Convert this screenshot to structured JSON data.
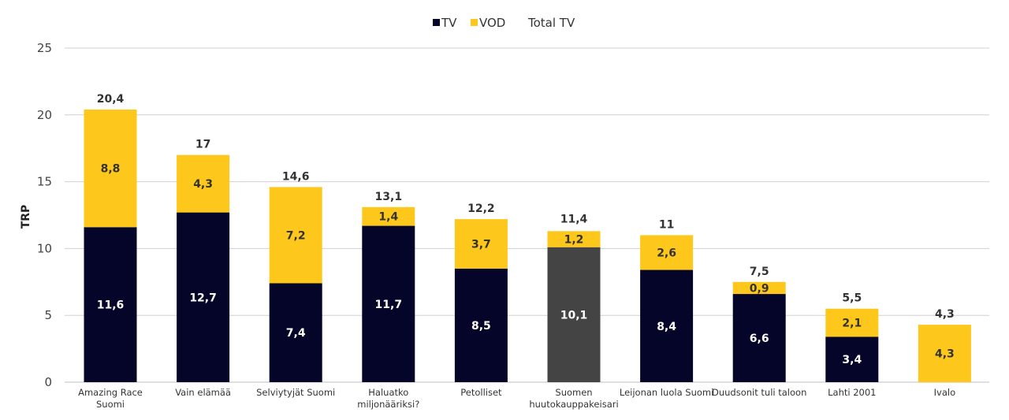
{
  "chart_data": {
    "type": "bar",
    "stacked": true,
    "title": "",
    "xlabel": "",
    "ylabel": "TRP",
    "ylim": [
      0,
      25
    ],
    "yticks": [
      0,
      5,
      10,
      15,
      20,
      25
    ],
    "grid": true,
    "legend_position": "top-center",
    "legend": [
      {
        "name": "TV",
        "color": "#05052a"
      },
      {
        "name": "VOD",
        "color": "#fdc71c"
      },
      {
        "name": "Total TV",
        "color": null
      }
    ],
    "categories": [
      [
        "Amazing Race",
        "Suomi"
      ],
      [
        "Vain elämää"
      ],
      [
        "Selviytyjät Suomi"
      ],
      [
        "Haluatko",
        "miljonääriksi?"
      ],
      [
        "Petolliset"
      ],
      [
        "Suomen",
        "huutokauppakeisari"
      ],
      [
        "Leijonan luola Suomi"
      ],
      [
        "Duudsonit tuli taloon"
      ],
      [
        "Lahti 2001"
      ],
      [
        "Ivalo"
      ]
    ],
    "series": [
      {
        "name": "TV",
        "color": "#05052a",
        "label_color": "#ffffff",
        "values": [
          11.6,
          12.7,
          7.4,
          11.7,
          8.5,
          10.1,
          8.4,
          6.6,
          3.4,
          0
        ],
        "labels": [
          "11,6",
          "12,7",
          "7,4",
          "11,7",
          "8,5",
          "10,1",
          "8,4",
          "6,6",
          "3,4",
          ""
        ],
        "point_colors": [
          null,
          null,
          null,
          null,
          null,
          "#444444",
          null,
          null,
          null,
          null
        ]
      },
      {
        "name": "VOD",
        "color": "#fdc71c",
        "label_color": "#333333",
        "values": [
          8.8,
          4.3,
          7.2,
          1.4,
          3.7,
          1.2,
          2.6,
          0.9,
          2.1,
          4.3
        ],
        "labels": [
          "8,8",
          "4,3",
          "7,2",
          "1,4",
          "3,7",
          "1,2",
          "2,6",
          "0,9",
          "2,1",
          "4,3"
        ]
      }
    ],
    "totals": [
      20.4,
      17,
      14.6,
      13.1,
      12.2,
      11.4,
      11,
      7.5,
      5.5,
      4.3
    ],
    "total_labels": [
      "20,4",
      "17",
      "14,6",
      "13,1",
      "12,2",
      "11,4",
      "11",
      "7,5",
      "5,5",
      "4,3"
    ]
  }
}
